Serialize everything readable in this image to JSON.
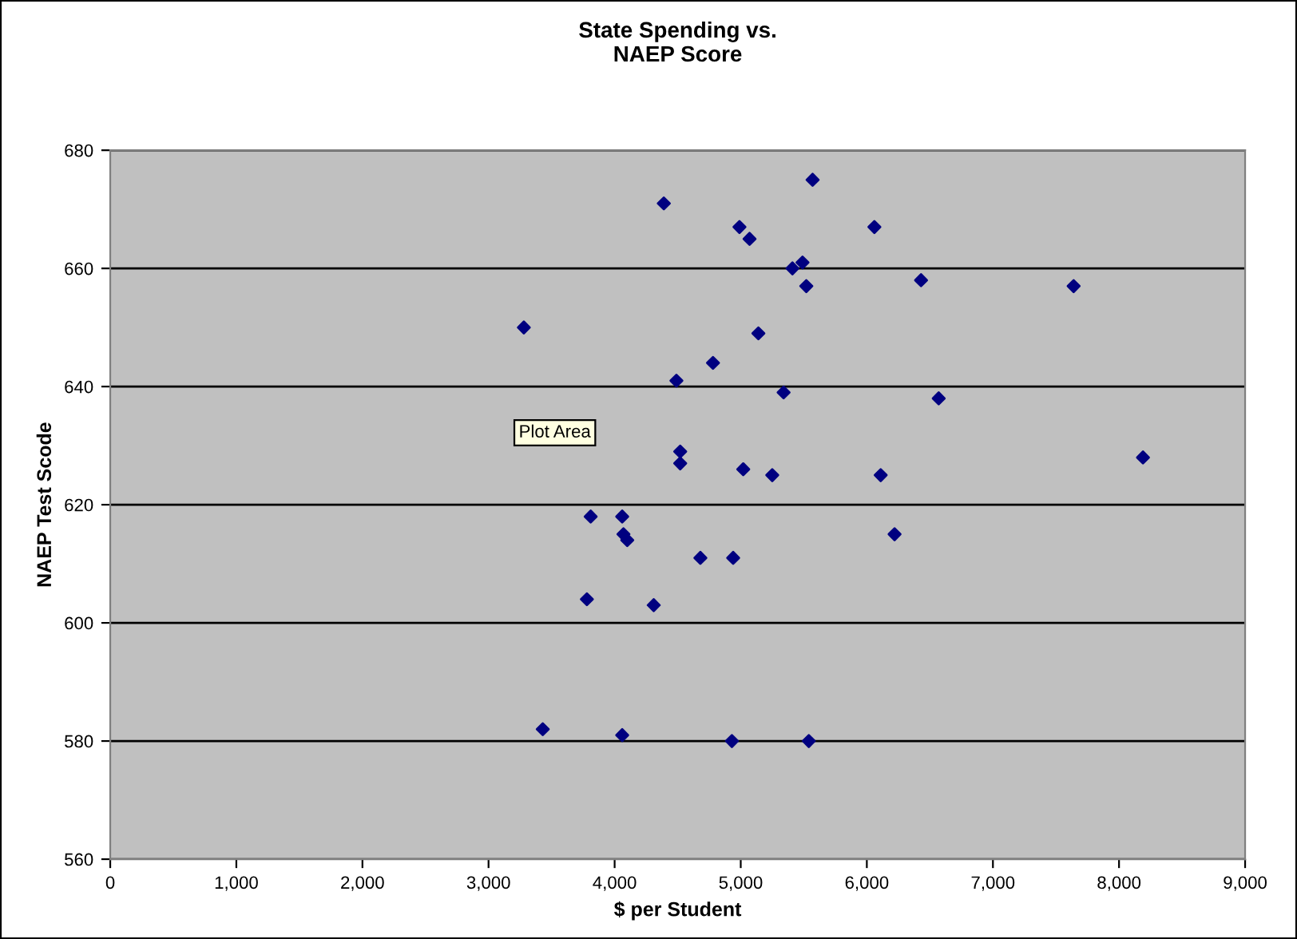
{
  "chart_data": {
    "type": "scatter",
    "title": "State Spending vs.\nNAEP Score",
    "xlabel": "$ per Student",
    "ylabel": "NAEP Test Scode",
    "x": [
      5570,
      4390,
      4990,
      5070,
      6060,
      5410,
      5490,
      5520,
      3280,
      5140,
      4780,
      4490,
      5340,
      6430,
      7640,
      6570,
      6110,
      8190,
      6220,
      4520,
      4520,
      5020,
      5250,
      3810,
      4060,
      4070,
      4100,
      4680,
      4940,
      3780,
      4310,
      3430,
      4060,
      4930,
      5540
    ],
    "values": [
      675,
      671,
      667,
      665,
      667,
      660,
      661,
      657,
      650,
      649,
      644,
      641,
      639,
      658,
      657,
      638,
      625,
      628,
      615,
      629,
      627,
      626,
      625,
      618,
      618,
      615,
      614,
      611,
      611,
      604,
      603,
      582,
      581,
      580,
      580
    ],
    "color": "#000080",
    "marker": "diamond",
    "grid": "y",
    "xlim": [
      0,
      9000
    ],
    "ylim": [
      560,
      680
    ],
    "xticks": [
      0,
      {
        "value": 1000,
        "label": "1,000"
      },
      {
        "value": 2000,
        "label": "2,000"
      },
      {
        "value": 3000,
        "label": "3,000"
      },
      {
        "value": 4000,
        "label": "4,000"
      },
      {
        "value": 5000,
        "label": "5,000"
      },
      {
        "value": 6000,
        "label": "6,000"
      },
      {
        "value": 7000,
        "label": "7,000"
      },
      {
        "value": 8000,
        "label": "8,000"
      },
      {
        "value": 9000,
        "label": "9,000"
      }
    ],
    "yticks": [
      560,
      580,
      600,
      620,
      640,
      660,
      680
    ],
    "annotations": [
      "Plot Area"
    ]
  }
}
